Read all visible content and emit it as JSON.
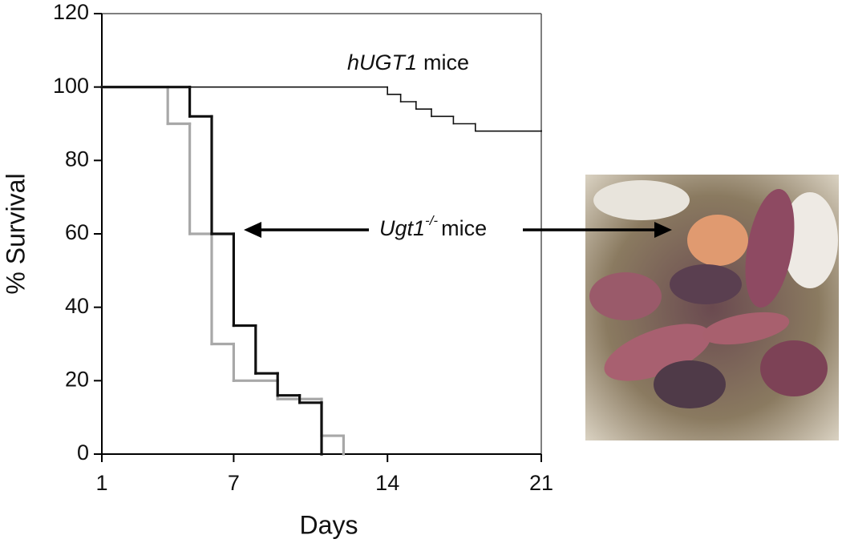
{
  "chart_data": {
    "type": "step",
    "xlabel": "Days",
    "ylabel": "% Survival",
    "xlim": [
      1,
      21
    ],
    "ylim": [
      0,
      120
    ],
    "xticks": [
      1,
      7,
      14,
      21
    ],
    "yticks": [
      0,
      20,
      40,
      60,
      80,
      100,
      120
    ],
    "series": [
      {
        "color": "#111111",
        "width": 1.6,
        "x": [
          1,
          14,
          14.6,
          15.3,
          16,
          17,
          18,
          21
        ],
        "values": [
          100,
          98,
          96,
          94,
          92,
          90,
          88,
          88
        ]
      },
      {
        "color": "#111111",
        "width": 3.2,
        "x": [
          1,
          5,
          6,
          7,
          8,
          9,
          10,
          11
        ],
        "values": [
          100,
          92,
          60,
          35,
          22,
          16,
          14,
          0
        ]
      },
      {
        "color": "#a8a8a8",
        "width": 3.2,
        "x": [
          1,
          4,
          5,
          6,
          7,
          9,
          11,
          12
        ],
        "values": [
          100,
          90,
          60,
          30,
          20,
          15,
          5,
          0
        ]
      }
    ],
    "annotations": [
      {
        "gene": "hUGT1",
        "suffix": "mice"
      },
      {
        "gene": "Ugt1",
        "sup": "-/-",
        "suffix": "mice"
      }
    ]
  }
}
